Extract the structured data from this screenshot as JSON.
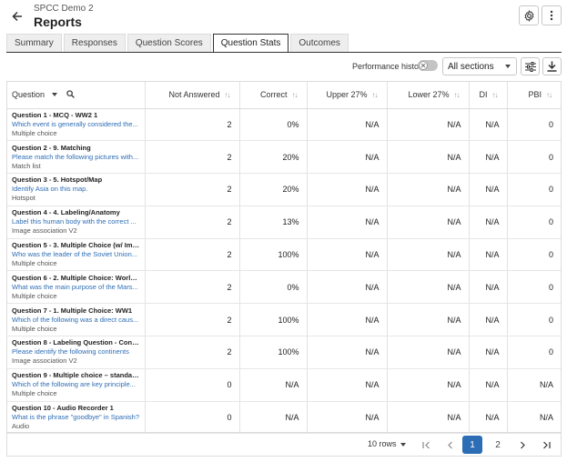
{
  "header": {
    "subtitle": "SPCC Demo 2",
    "title": "Reports"
  },
  "tabs": [
    {
      "label": "Summary",
      "active": false
    },
    {
      "label": "Responses",
      "active": false
    },
    {
      "label": "Question Scores",
      "active": false
    },
    {
      "label": "Question Stats",
      "active": true
    },
    {
      "label": "Outcomes",
      "active": false
    }
  ],
  "toolbar": {
    "performance_history_label": "Performance history",
    "performance_history_on": false,
    "sections_value": "All sections"
  },
  "table": {
    "columns": [
      "Question",
      "Not Answered",
      "Correct",
      "Upper 27%",
      "Lower 27%",
      "DI",
      "PBI"
    ],
    "rows": [
      {
        "title": "Question 1 - MCQ - WW2 1",
        "text": "Which event is generally considered the...",
        "type": "Multiple choice",
        "not_answered": "2",
        "correct": "0%",
        "upper": "N/A",
        "lower": "N/A",
        "di": "N/A",
        "pbi": "0"
      },
      {
        "title": "Question 2 - 9. Matching",
        "text": "Please match the following pictures with...",
        "type": "Match list",
        "not_answered": "2",
        "correct": "20%",
        "upper": "N/A",
        "lower": "N/A",
        "di": "N/A",
        "pbi": "0"
      },
      {
        "title": "Question 3 - 5. Hotspot/Map",
        "text": "Identify Asia on this map.",
        "type": "Hotspot",
        "not_answered": "2",
        "correct": "20%",
        "upper": "N/A",
        "lower": "N/A",
        "di": "N/A",
        "pbi": "0"
      },
      {
        "title": "Question 4 - 4. Labeling/Anatomy",
        "text": "Label this human body with the correct ...",
        "type": "Image association V2",
        "not_answered": "2",
        "correct": "13%",
        "upper": "N/A",
        "lower": "N/A",
        "di": "N/A",
        "pbi": "0"
      },
      {
        "title": "Question 5 - 3. Multiple Choice (w/ Image...",
        "text": "Who was the leader of the Soviet Union...",
        "type": "Multiple choice",
        "not_answered": "2",
        "correct": "100%",
        "upper": "N/A",
        "lower": "N/A",
        "di": "N/A",
        "pbi": "0"
      },
      {
        "title": "Question 6 - 2. Multiple Choice: World W...",
        "text": "What was the main purpose of the Mars...",
        "type": "Multiple choice",
        "not_answered": "2",
        "correct": "0%",
        "upper": "N/A",
        "lower": "N/A",
        "di": "N/A",
        "pbi": "0"
      },
      {
        "title": "Question 7 - 1. Multiple Choice: WW1",
        "text": "Which of the following was a direct caus...",
        "type": "Multiple choice",
        "not_answered": "2",
        "correct": "100%",
        "upper": "N/A",
        "lower": "N/A",
        "di": "N/A",
        "pbi": "0"
      },
      {
        "title": "Question 8 - Labeling Question - Contine...",
        "text": "Please identify the following continents",
        "type": "Image association V2",
        "not_answered": "2",
        "correct": "100%",
        "upper": "N/A",
        "lower": "N/A",
        "di": "N/A",
        "pbi": "0"
      },
      {
        "title": "Question 9 - Multiple choice – standard (9)",
        "text": "Which of the following are key principle...",
        "type": "Multiple choice",
        "not_answered": "0",
        "correct": "N/A",
        "upper": "N/A",
        "lower": "N/A",
        "di": "N/A",
        "pbi": "N/A"
      },
      {
        "title": "Question 10 - Audio Recorder 1",
        "text": "What is the phrase \"goodbye\" in Spanish?",
        "type": "Audio",
        "not_answered": "0",
        "correct": "N/A",
        "upper": "N/A",
        "lower": "N/A",
        "di": "N/A",
        "pbi": "N/A"
      }
    ]
  },
  "pagination": {
    "rows_label": "10 rows",
    "pages": [
      "1",
      "2"
    ],
    "current_page": "1"
  },
  "colors": {
    "accent": "#2d6db5",
    "link": "#2d6db5"
  },
  "icons": {
    "back": "arrow-left-icon",
    "settings": "gear-icon",
    "more": "more-vertical-icon",
    "filters": "sliders-icon",
    "download": "download-icon",
    "search": "search-icon",
    "sort": "sort-arrows-icon"
  }
}
